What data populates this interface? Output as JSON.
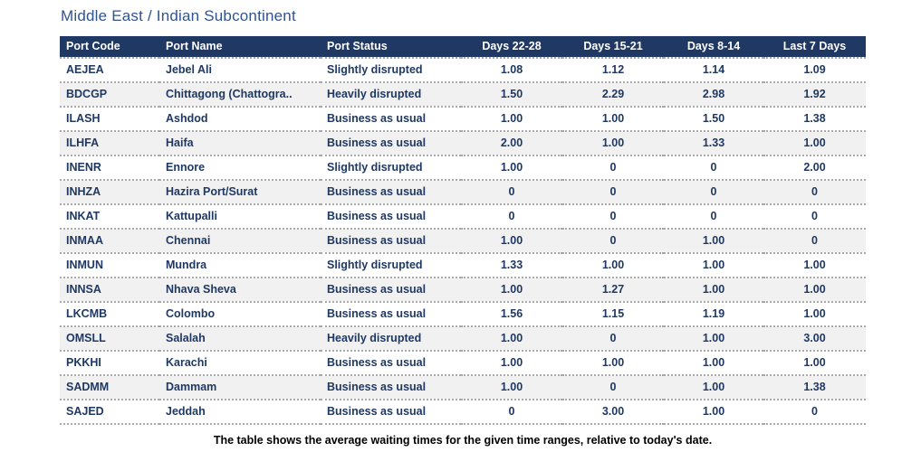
{
  "colors": {
    "header_bg": "#1f3864",
    "header_text": "#ffffff",
    "cell_text": "#1f3864",
    "title_text": "#31538e",
    "alt_row_bg": "#f1f1f1",
    "divider": "#a8a8a8",
    "caption_text": "#000000"
  },
  "chart_data": {
    "type": "table",
    "title": "Middle East / Indian Subcontinent",
    "caption": "The table shows the average waiting times for the given time ranges, relative to today's date.",
    "legend_position": "none",
    "grid": "dotted-row-separators",
    "columns": [
      "Port Code",
      "Port Name",
      "Port Status",
      "Days 22-28",
      "Days 15-21",
      "Days 8-14",
      "Last 7 Days"
    ],
    "rows": [
      [
        "AEJEA",
        "Jebel Ali",
        "Slightly disrupted",
        "1.08",
        "1.12",
        "1.14",
        "1.09"
      ],
      [
        "BDCGP",
        "Chittagong (Chattogra..",
        "Heavily disrupted",
        "1.50",
        "2.29",
        "2.98",
        "1.92"
      ],
      [
        "ILASH",
        "Ashdod",
        "Business as usual",
        "1.00",
        "1.00",
        "1.50",
        "1.38"
      ],
      [
        "ILHFA",
        "Haifa",
        "Business as usual",
        "2.00",
        "1.00",
        "1.33",
        "1.00"
      ],
      [
        "INENR",
        "Ennore",
        "Slightly disrupted",
        "1.00",
        "0",
        "0",
        "2.00"
      ],
      [
        "INHZA",
        "Hazira Port/Surat",
        "Business as usual",
        "0",
        "0",
        "0",
        "0"
      ],
      [
        "INKAT",
        "Kattupalli",
        "Business as usual",
        "0",
        "0",
        "0",
        "0"
      ],
      [
        "INMAA",
        "Chennai",
        "Business as usual",
        "1.00",
        "0",
        "1.00",
        "0"
      ],
      [
        "INMUN",
        "Mundra",
        "Slightly disrupted",
        "1.33",
        "1.00",
        "1.00",
        "1.00"
      ],
      [
        "INNSA",
        "Nhava Sheva",
        "Business as usual",
        "1.00",
        "1.27",
        "1.00",
        "1.00"
      ],
      [
        "LKCMB",
        "Colombo",
        "Business as usual",
        "1.56",
        "1.15",
        "1.19",
        "1.00"
      ],
      [
        "OMSLL",
        "Salalah",
        "Heavily disrupted",
        "1.00",
        "0",
        "1.00",
        "3.00"
      ],
      [
        "PKKHI",
        "Karachi",
        "Business as usual",
        "1.00",
        "1.00",
        "1.00",
        "1.00"
      ],
      [
        "SADMM",
        "Dammam",
        "Business as usual",
        "1.00",
        "0",
        "1.00",
        "1.38"
      ],
      [
        "SAJED",
        "Jeddah",
        "Business as usual",
        "0",
        "3.00",
        "1.00",
        "0"
      ]
    ]
  }
}
